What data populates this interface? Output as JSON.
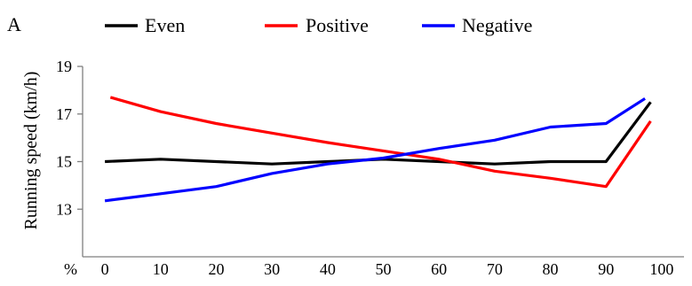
{
  "panel_label": "A",
  "chart_data": {
    "type": "line",
    "title": "",
    "xlabel": "%",
    "ylabel": "Running speed (km/h)",
    "x_ticks": [
      0,
      10,
      20,
      30,
      40,
      50,
      60,
      70,
      80,
      90,
      100
    ],
    "y_ticks": [
      13,
      15,
      17,
      19
    ],
    "xlim": [
      -4,
      104
    ],
    "ylim": [
      11,
      19
    ],
    "grid": false,
    "legend_position": "top",
    "series": [
      {
        "name": "Even",
        "color": "#000000",
        "x": [
          0,
          10,
          20,
          30,
          40,
          50,
          60,
          70,
          80,
          90,
          98
        ],
        "y": [
          15.0,
          15.1,
          15.0,
          14.9,
          15.0,
          15.1,
          15.0,
          14.9,
          15.0,
          15.0,
          17.5
        ]
      },
      {
        "name": "Positive",
        "color": "#ff0000",
        "x": [
          1,
          10,
          20,
          30,
          40,
          50,
          60,
          70,
          80,
          90,
          98
        ],
        "y": [
          17.7,
          17.1,
          16.6,
          16.2,
          15.8,
          15.45,
          15.1,
          14.6,
          14.3,
          13.95,
          16.7
        ]
      },
      {
        "name": "Negative",
        "color": "#0000ff",
        "x": [
          0,
          10,
          20,
          30,
          40,
          50,
          60,
          70,
          80,
          90,
          97
        ],
        "y": [
          13.35,
          13.65,
          13.95,
          14.5,
          14.9,
          15.15,
          15.55,
          15.9,
          16.45,
          16.6,
          17.65
        ]
      }
    ]
  }
}
